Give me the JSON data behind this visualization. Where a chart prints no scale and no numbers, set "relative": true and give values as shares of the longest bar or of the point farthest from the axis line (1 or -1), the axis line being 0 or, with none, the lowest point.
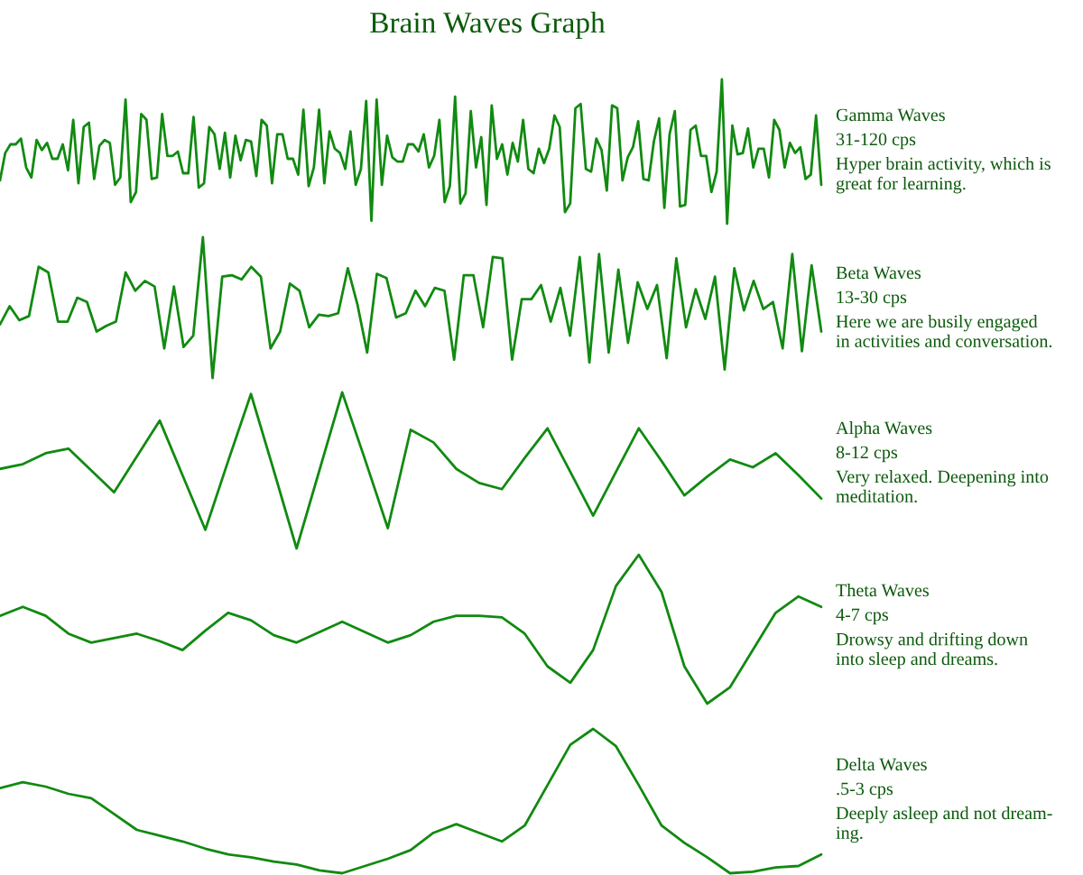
{
  "chart_data": [
    {
      "type": "line",
      "title": "Brain Waves Graph",
      "relative": true,
      "color": "#118a11",
      "marker": "none",
      "line_style": "solid",
      "categories": [
        null,
        null,
        null,
        null,
        null,
        null,
        null,
        null,
        null,
        null,
        null,
        null,
        null,
        null,
        null,
        null,
        null,
        null,
        null,
        null,
        null,
        null,
        null,
        null,
        null,
        null,
        null,
        null,
        null,
        null,
        null,
        null,
        null,
        null,
        null,
        null,
        null,
        null,
        null,
        null,
        null,
        null,
        null,
        null,
        null,
        null,
        null,
        null,
        null,
        null,
        null,
        null,
        null,
        null,
        null,
        null,
        null,
        null,
        null,
        null,
        null,
        null,
        null,
        null,
        null,
        null,
        null,
        null,
        null,
        null,
        null,
        null,
        null,
        null,
        null,
        null,
        null,
        null,
        null,
        null,
        null,
        null,
        null,
        null,
        null,
        null,
        null,
        null,
        null,
        null,
        null,
        null,
        null,
        null,
        null,
        null,
        null,
        null,
        null,
        null,
        null,
        null,
        null,
        null,
        null,
        null,
        null,
        null,
        null,
        null,
        null,
        null,
        null,
        null,
        null,
        null,
        null,
        null,
        null,
        null,
        null,
        null,
        null,
        null,
        null,
        null,
        null,
        null,
        null,
        null,
        null,
        null,
        null,
        null,
        null,
        null,
        null,
        null,
        null,
        null,
        null,
        null,
        null,
        null,
        null,
        null,
        null,
        null,
        null,
        null,
        null,
        null,
        null,
        null,
        null,
        null,
        null,
        null
      ],
      "values": [
        0.3,
        0.49,
        0.55,
        0.55,
        0.59,
        0.39,
        0.32,
        0.58,
        0.51,
        0.56,
        0.45,
        0.45,
        0.55,
        0.37,
        0.72,
        0.28,
        0.67,
        0.7,
        0.31,
        0.54,
        0.58,
        0.56,
        0.27,
        0.32,
        0.86,
        0.15,
        0.22,
        0.76,
        0.72,
        0.31,
        0.32,
        0.76,
        0.47,
        0.47,
        0.5,
        0.35,
        0.35,
        0.74,
        0.25,
        0.28,
        0.67,
        0.62,
        0.38,
        0.63,
        0.32,
        0.61,
        0.44,
        0.58,
        0.57,
        0.33,
        0.72,
        0.68,
        0.28,
        0.62,
        0.62,
        0.45,
        0.45,
        0.34,
        0.79,
        0.26,
        0.39,
        0.79,
        0.28,
        0.64,
        0.52,
        0.49,
        0.38,
        0.64,
        0.27,
        0.38,
        0.85,
        0.02,
        0.86,
        0.27,
        0.61,
        0.46,
        0.43,
        0.43,
        0.55,
        0.55,
        0.5,
        0.62,
        0.39,
        0.47,
        0.72,
        0.15,
        0.26,
        0.88,
        0.14,
        0.21,
        0.78,
        0.39,
        0.6,
        0.13,
        0.82,
        0.45,
        0.55,
        0.34,
        0.56,
        0.43,
        0.72,
        0.38,
        0.35,
        0.52,
        0.42,
        0.52,
        0.75,
        0.67,
        0.08,
        0.14,
        0.8,
        0.83,
        0.38,
        0.36,
        0.59,
        0.51,
        0.23,
        0.82,
        0.8,
        0.3,
        0.46,
        0.53,
        0.71,
        0.31,
        0.3,
        0.57,
        0.73,
        0.11,
        0.62,
        0.78,
        0.12,
        0.13,
        0.65,
        0.68,
        0.47,
        0.47,
        0.22,
        0.36,
        1.0,
        0.0,
        0.68,
        0.48,
        0.49,
        0.66,
        0.39,
        0.52,
        0.52,
        0.32,
        0.72,
        0.65,
        0.39,
        0.56,
        0.49,
        0.53,
        0.31,
        0.34,
        0.75,
        0.27
      ],
      "annotations": [
        "Gamma Waves",
        "31-120 cps",
        "Hyper brain activity, which is\ngreat for learning."
      ]
    },
    {
      "type": "line",
      "relative": true,
      "color": "#118a11",
      "marker": "none",
      "line_style": "solid",
      "categories": [
        null,
        null,
        null,
        null,
        null,
        null,
        null,
        null,
        null,
        null,
        null,
        null,
        null,
        null,
        null,
        null,
        null,
        null,
        null,
        null,
        null,
        null,
        null,
        null,
        null,
        null,
        null,
        null,
        null,
        null,
        null,
        null,
        null,
        null,
        null,
        null,
        null,
        null,
        null,
        null,
        null,
        null,
        null,
        null,
        null,
        null,
        null,
        null,
        null,
        null,
        null,
        null,
        null,
        null,
        null,
        null,
        null,
        null,
        null,
        null,
        null,
        null,
        null,
        null,
        null,
        null,
        null,
        null,
        null,
        null,
        null,
        null,
        null,
        null,
        null,
        null,
        null,
        null,
        null,
        null,
        null,
        null,
        null,
        null,
        null,
        null
      ],
      "values": [
        0.38,
        0.51,
        0.41,
        0.44,
        0.79,
        0.75,
        0.4,
        0.4,
        0.57,
        0.54,
        0.33,
        0.37,
        0.4,
        0.75,
        0.62,
        0.69,
        0.65,
        0.21,
        0.65,
        0.22,
        0.3,
        1.0,
        0.0,
        0.72,
        0.73,
        0.7,
        0.79,
        0.72,
        0.21,
        0.33,
        0.67,
        0.62,
        0.36,
        0.45,
        0.44,
        0.46,
        0.78,
        0.52,
        0.18,
        0.74,
        0.71,
        0.43,
        0.46,
        0.62,
        0.51,
        0.64,
        0.62,
        0.13,
        0.73,
        0.73,
        0.36,
        0.86,
        0.85,
        0.13,
        0.56,
        0.56,
        0.66,
        0.4,
        0.64,
        0.3,
        0.86,
        0.11,
        0.88,
        0.18,
        0.77,
        0.25,
        0.68,
        0.49,
        0.66,
        0.14,
        0.85,
        0.36,
        0.63,
        0.42,
        0.72,
        0.06,
        0.78,
        0.48,
        0.69,
        0.49,
        0.54,
        0.21,
        0.88,
        0.19,
        0.8,
        0.33
      ],
      "annotations": [
        "Beta Waves",
        "13-30 cps",
        "Here we are busily engaged\nin activities and conversation."
      ]
    },
    {
      "type": "line",
      "relative": true,
      "color": "#118a11",
      "marker": "none",
      "line_style": "solid",
      "categories": [
        null,
        null,
        null,
        null,
        null,
        null,
        null,
        null,
        null,
        null,
        null,
        null,
        null,
        null,
        null,
        null,
        null,
        null,
        null,
        null,
        null,
        null,
        null,
        null,
        null,
        null,
        null,
        null,
        null,
        null,
        null,
        null,
        null,
        null,
        null,
        null,
        null
      ],
      "values": [
        0.51,
        0.54,
        0.61,
        0.64,
        0.5,
        0.36,
        0.59,
        0.82,
        0.47,
        0.12,
        0.56,
        0.99,
        0.5,
        0.0,
        0.5,
        1.0,
        0.57,
        0.13,
        0.76,
        0.68,
        0.51,
        0.42,
        0.38,
        0.58,
        0.77,
        0.49,
        0.21,
        0.49,
        0.77,
        0.56,
        0.34,
        0.46,
        0.57,
        0.52,
        0.61,
        0.47,
        0.32
      ],
      "annotations": [
        "Alpha Waves",
        "8-12 cps",
        "Very relaxed. Deepening into\nmeditation."
      ]
    },
    {
      "type": "line",
      "relative": true,
      "color": "#118a11",
      "marker": "none",
      "line_style": "solid",
      "categories": [
        null,
        null,
        null,
        null,
        null,
        null,
        null,
        null,
        null,
        null,
        null,
        null,
        null,
        null,
        null,
        null,
        null,
        null,
        null,
        null,
        null,
        null,
        null,
        null,
        null,
        null,
        null,
        null,
        null,
        null,
        null,
        null,
        null,
        null,
        null,
        null,
        null
      ],
      "values": [
        0.59,
        0.65,
        0.59,
        0.47,
        0.41,
        0.44,
        0.47,
        0.42,
        0.36,
        0.49,
        0.61,
        0.56,
        0.46,
        0.41,
        0.48,
        0.55,
        0.48,
        0.41,
        0.46,
        0.55,
        0.59,
        0.59,
        0.58,
        0.47,
        0.25,
        0.14,
        0.36,
        0.79,
        1.0,
        0.75,
        0.25,
        0.0,
        0.11,
        0.36,
        0.61,
        0.72,
        0.65
      ],
      "annotations": [
        "Theta Waves",
        "4-7 cps",
        "Drowsy and drifting down\ninto sleep and dreams."
      ]
    },
    {
      "type": "line",
      "relative": true,
      "color": "#118a11",
      "marker": "none",
      "line_style": "solid",
      "categories": [
        null,
        null,
        null,
        null,
        null,
        null,
        null,
        null,
        null,
        null,
        null,
        null,
        null,
        null,
        null,
        null,
        null,
        null,
        null,
        null,
        null,
        null,
        null,
        null,
        null,
        null,
        null,
        null,
        null,
        null,
        null,
        null,
        null,
        null,
        null,
        null,
        null
      ],
      "values": [
        0.59,
        0.63,
        0.6,
        0.55,
        0.52,
        0.41,
        0.3,
        0.26,
        0.22,
        0.17,
        0.13,
        0.11,
        0.08,
        0.06,
        0.02,
        0.0,
        0.05,
        0.1,
        0.16,
        0.28,
        0.34,
        0.28,
        0.22,
        0.33,
        0.61,
        0.89,
        1.0,
        0.88,
        0.61,
        0.33,
        0.21,
        0.11,
        0.0,
        0.01,
        0.04,
        0.05,
        0.13
      ],
      "annotations": [
        "Delta Waves",
        ".5-3 cps",
        "Deeply asleep and not dream-\ning."
      ]
    }
  ]
}
